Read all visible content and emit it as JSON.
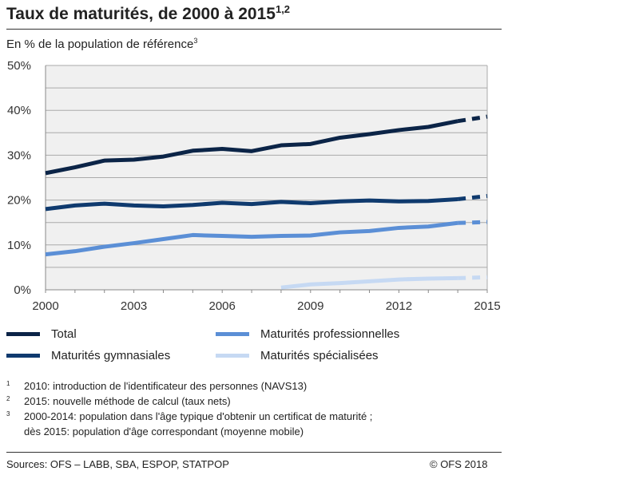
{
  "title": "Taux de maturités, de 2000 à 2015",
  "title_sup": "1,2",
  "subtitle": "En % de la population de référence",
  "subtitle_sup": "3",
  "chart_data": {
    "type": "line",
    "title": "Taux de maturités, de 2000 à 2015",
    "ylabel": "En % de la population de référence",
    "x": [
      2000,
      2001,
      2002,
      2003,
      2004,
      2005,
      2006,
      2007,
      2008,
      2009,
      2010,
      2011,
      2012,
      2013,
      2014,
      2015
    ],
    "xticks": [
      "2000",
      "2003",
      "2006",
      "2009",
      "2012",
      "2015"
    ],
    "yticks": [
      "0%",
      "10%",
      "20%",
      "30%",
      "40%",
      "50%"
    ],
    "ylim": [
      0,
      50
    ],
    "grid": true,
    "dashed_segment": "2014-2015",
    "series": [
      {
        "name": "Total",
        "color": "#0b2447",
        "values": [
          26.0,
          27.3,
          28.8,
          29.0,
          29.7,
          31.0,
          31.4,
          30.9,
          32.2,
          32.5,
          33.9,
          34.7,
          35.6,
          36.3,
          37.6,
          38.6
        ]
      },
      {
        "name": "Maturités gymnasiales",
        "color": "#0f3a6e",
        "values": [
          18.0,
          18.8,
          19.2,
          18.8,
          18.6,
          18.9,
          19.4,
          19.1,
          19.6,
          19.3,
          19.7,
          19.9,
          19.7,
          19.8,
          20.2,
          20.9
        ]
      },
      {
        "name": "Maturités professionnelles",
        "color": "#5b8fd6",
        "values": [
          7.9,
          8.6,
          9.6,
          10.4,
          11.3,
          12.2,
          12.0,
          11.8,
          12.0,
          12.1,
          12.8,
          13.1,
          13.8,
          14.1,
          14.9,
          15.1
        ]
      },
      {
        "name": "Maturités spécialisées",
        "color": "#c6d9f3",
        "values": [
          null,
          null,
          null,
          null,
          null,
          null,
          null,
          null,
          0.5,
          1.2,
          1.5,
          1.9,
          2.3,
          2.5,
          2.6,
          2.8
        ]
      }
    ]
  },
  "footnotes": [
    {
      "num": "1",
      "text": "2010: introduction de l'identificateur des personnes (NAVS13)"
    },
    {
      "num": "2",
      "text": "2015: nouvelle méthode de calcul (taux nets)"
    },
    {
      "num": "3",
      "text": "2000-2014: population dans l'âge typique d'obtenir un certificat de maturité ;"
    },
    {
      "num": "",
      "text": "dès 2015: population d'âge correspondant (moyenne mobile)"
    }
  ],
  "sources": "Sources: OFS – LABB, SBA, ESPOP, STATPOP",
  "copyright": "© OFS 2018"
}
